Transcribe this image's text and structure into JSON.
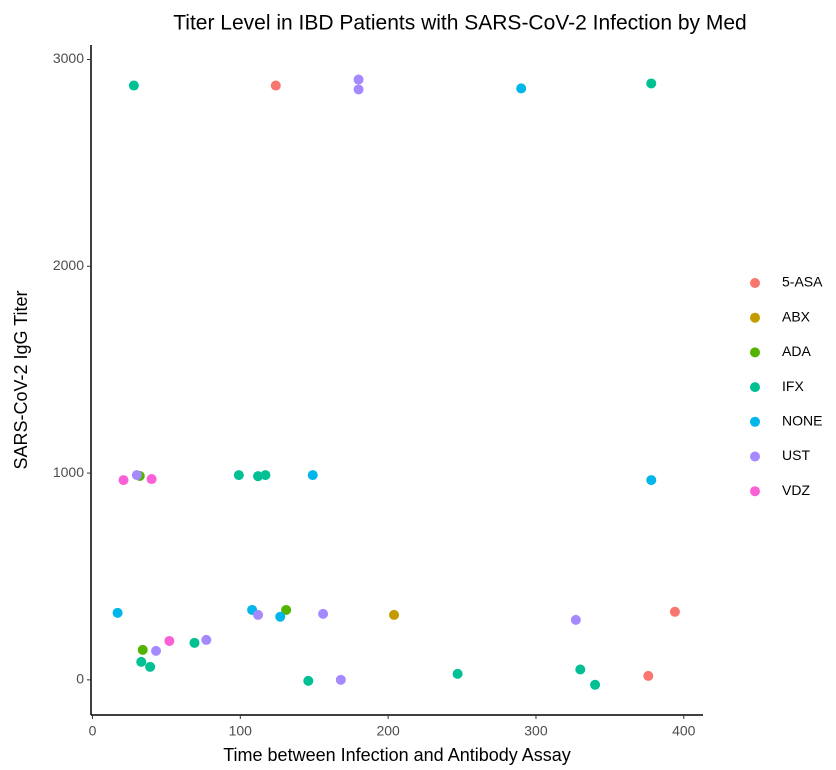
{
  "chart_data": {
    "type": "scatter",
    "title": "Titer Level in IBD Patients with SARS-CoV-2 Infection by Med",
    "x_label": "Time between Infection and Antibody Assay",
    "y_label": "SARS-CoV-2 IgG Titer",
    "xlim": [
      -1,
      413
    ],
    "ylim": [
      -170,
      3070
    ],
    "xticks": [
      0,
      100,
      200,
      300,
      400
    ],
    "yticks": [
      0,
      1000,
      2000,
      3000
    ],
    "legend": "right",
    "series": [
      {
        "name": "5-ASA",
        "color": "#F8766D",
        "x": [
          124,
          394,
          376
        ],
        "values": [
          2874,
          329,
          19
        ]
      },
      {
        "name": "ABX",
        "color": "#C49A00",
        "x": [
          204
        ],
        "values": [
          314
        ]
      },
      {
        "name": "ADA",
        "color": "#53B400",
        "x": [
          32,
          34,
          131
        ],
        "values": [
          986,
          145,
          338
        ]
      },
      {
        "name": "IFX",
        "color": "#00C094",
        "x": [
          28,
          378,
          99,
          112,
          117,
          33,
          39,
          69,
          146,
          247,
          330,
          340
        ],
        "values": [
          2874,
          2884,
          990,
          985,
          990,
          87,
          63,
          179,
          -5,
          29,
          50,
          -24
        ]
      },
      {
        "name": "NONE",
        "color": "#00B6EB",
        "x": [
          17,
          108,
          127,
          149,
          290,
          378
        ],
        "values": [
          324,
          338,
          305,
          990,
          2860,
          966
        ]
      },
      {
        "name": "UST",
        "color": "#A58AFF",
        "x": [
          30,
          180,
          180,
          112,
          156,
          77,
          43,
          168,
          327
        ],
        "values": [
          990,
          2903,
          2855,
          314,
          319,
          193,
          140,
          0,
          290
        ]
      },
      {
        "name": "VDZ",
        "color": "#FB61D7",
        "x": [
          21,
          40,
          52
        ],
        "values": [
          966,
          971,
          188
        ]
      }
    ]
  }
}
